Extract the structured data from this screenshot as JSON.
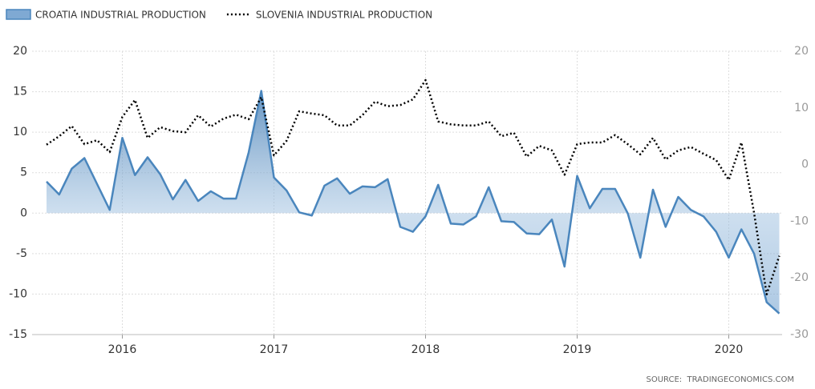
{
  "chart_data": {
    "type": "line",
    "categories": [
      null,
      null,
      null,
      null,
      null,
      null,
      "2016",
      null,
      null,
      null,
      null,
      null,
      null,
      null,
      null,
      null,
      null,
      null,
      "2017",
      null,
      null,
      null,
      null,
      null,
      null,
      null,
      null,
      null,
      null,
      null,
      "2018",
      null,
      null,
      null,
      null,
      null,
      null,
      null,
      null,
      null,
      null,
      null,
      "2019",
      null,
      null,
      null,
      null,
      null,
      null,
      null,
      null,
      null,
      null,
      null,
      "2020",
      null,
      null,
      null,
      null
    ],
    "series": [
      {
        "name": "CROATIA INDUSTRIAL PRODUCTION",
        "color": "#4a86bd",
        "fill": "area",
        "axis": "y",
        "values": [
          3.9,
          2.3,
          5.5,
          6.8,
          3.6,
          0.4,
          9.3,
          4.7,
          6.9,
          4.8,
          1.7,
          4.1,
          1.5,
          2.7,
          1.8,
          1.8,
          7.5,
          15.1,
          4.4,
          2.8,
          0.1,
          -0.3,
          3.4,
          4.3,
          2.4,
          3.3,
          3.2,
          4.2,
          -1.7,
          -2.3,
          -0.4,
          3.5,
          -1.3,
          -1.4,
          -0.4,
          3.2,
          -1.0,
          -1.1,
          -2.5,
          -2.6,
          -0.8,
          -6.6,
          4.6,
          0.6,
          3.0,
          3.0,
          0,
          -5.5,
          2.9,
          -1.7,
          2.0,
          0.4,
          -0.4,
          -2.3,
          -5.5,
          -2.0,
          -5.0,
          -11.0,
          -12.4
        ]
      },
      {
        "name": "SLOVENIA INDUSTRIAL PRODUCTION",
        "color": "#000000",
        "dash": "dotted",
        "axis": "y2",
        "values": [
          3.5,
          5.0,
          6.8,
          3.6,
          4.3,
          2.2,
          8.4,
          11.4,
          4.7,
          6.6,
          5.9,
          5.7,
          8.7,
          6.7,
          8.1,
          8.8,
          8.0,
          11.9,
          1.6,
          4.2,
          9.4,
          9.0,
          8.7,
          6.9,
          6.9,
          8.7,
          11.1,
          10.3,
          10.5,
          11.5,
          14.9,
          7.6,
          7.1,
          6.9,
          6.9,
          7.6,
          5.0,
          5.6,
          1.4,
          3.3,
          2.5,
          -1.8,
          3.6,
          3.9,
          3.9,
          5.2,
          3.6,
          1.8,
          4.7,
          0.9,
          2.5,
          3.1,
          1.9,
          0.8,
          -2.7,
          3.9,
          -8.5,
          -22.9,
          -16.1
        ]
      }
    ],
    "ylim": [
      -15,
      20
    ],
    "yticks": [
      -15,
      -10,
      -5,
      0,
      5,
      10,
      15,
      20
    ],
    "y2lim": [
      -30,
      20
    ],
    "y2ticks": [
      -30,
      -20,
      -10,
      0,
      10,
      20
    ],
    "grid": true,
    "legend": "top-left",
    "source": "SOURCE:  TRADINGECONOMICS.COM"
  }
}
